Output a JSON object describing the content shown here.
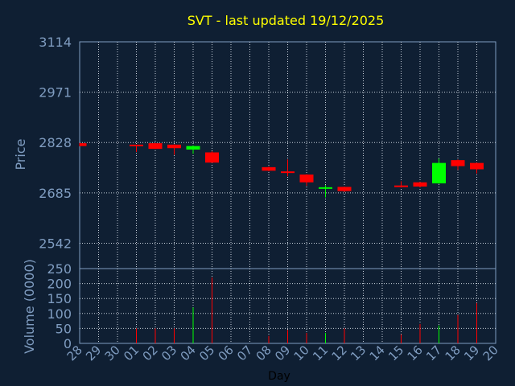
{
  "chart_data": {
    "type": "candlestick",
    "title": "SVT - last updated 19/12/2025",
    "xlabel": "Day",
    "ylabel": "Price",
    "volume_label": "Volume (0000)",
    "grid": true,
    "colors": {
      "background": "#0f1f33",
      "axis_text": "#7f9cc0",
      "title_text": "#ffff00",
      "grid": "#c8d2dc",
      "up": "#00ff00",
      "down": "#ff0000",
      "day_label": "#000000"
    },
    "price_axis": {
      "ylim": [
        2470,
        3114
      ],
      "ticks": [
        3114,
        2971,
        2828,
        2685,
        2542
      ]
    },
    "volume_axis": {
      "ylim": [
        0,
        250
      ],
      "ticks": [
        250,
        200,
        150,
        100,
        50,
        0
      ]
    },
    "x_ticks": [
      "28",
      "29",
      "30",
      "01",
      "02",
      "03",
      "04",
      "05",
      "06",
      "07",
      "08",
      "09",
      "10",
      "11",
      "12",
      "13",
      "14",
      "15",
      "16",
      "17",
      "18",
      "19",
      "20"
    ],
    "candles": [
      {
        "x": 0,
        "open": 2826,
        "close": 2818,
        "high": 2827,
        "low": 2817,
        "volume": 0
      },
      {
        "x": 3,
        "open": 2822,
        "close": 2818,
        "high": 2822,
        "low": 2801,
        "volume": 50
      },
      {
        "x": 4,
        "open": 2826,
        "close": 2810,
        "high": 2827,
        "low": 2809,
        "volume": 50
      },
      {
        "x": 5,
        "open": 2822,
        "close": 2812,
        "high": 2823,
        "low": 2793,
        "volume": 50
      },
      {
        "x": 6,
        "open": 2808,
        "close": 2818,
        "high": 2820,
        "low": 2796,
        "volume": 120
      },
      {
        "x": 7,
        "open": 2800,
        "close": 2771,
        "high": 2803,
        "low": 2770,
        "volume": 220
      },
      {
        "x": 10,
        "open": 2758,
        "close": 2748,
        "high": 2760,
        "low": 2746,
        "volume": 25
      },
      {
        "x": 11,
        "open": 2746,
        "close": 2742,
        "high": 2780,
        "low": 2732,
        "volume": 45
      },
      {
        "x": 12,
        "open": 2737,
        "close": 2715,
        "high": 2738,
        "low": 2705,
        "volume": 35
      },
      {
        "x": 13,
        "open": 2697,
        "close": 2701,
        "high": 2707,
        "low": 2672,
        "volume": 35
      },
      {
        "x": 14,
        "open": 2702,
        "close": 2690,
        "high": 2703,
        "low": 2688,
        "volume": 50
      },
      {
        "x": 17,
        "open": 2706,
        "close": 2702,
        "high": 2718,
        "low": 2700,
        "volume": 30
      },
      {
        "x": 18,
        "open": 2715,
        "close": 2703,
        "high": 2716,
        "low": 2701,
        "volume": 65
      },
      {
        "x": 19,
        "open": 2712,
        "close": 2770,
        "high": 2783,
        "low": 2711,
        "volume": 60
      },
      {
        "x": 20,
        "open": 2778,
        "close": 2761,
        "high": 2780,
        "low": 2750,
        "volume": 95
      },
      {
        "x": 21,
        "open": 2770,
        "close": 2752,
        "high": 2771,
        "low": 2740,
        "volume": 135
      }
    ]
  }
}
